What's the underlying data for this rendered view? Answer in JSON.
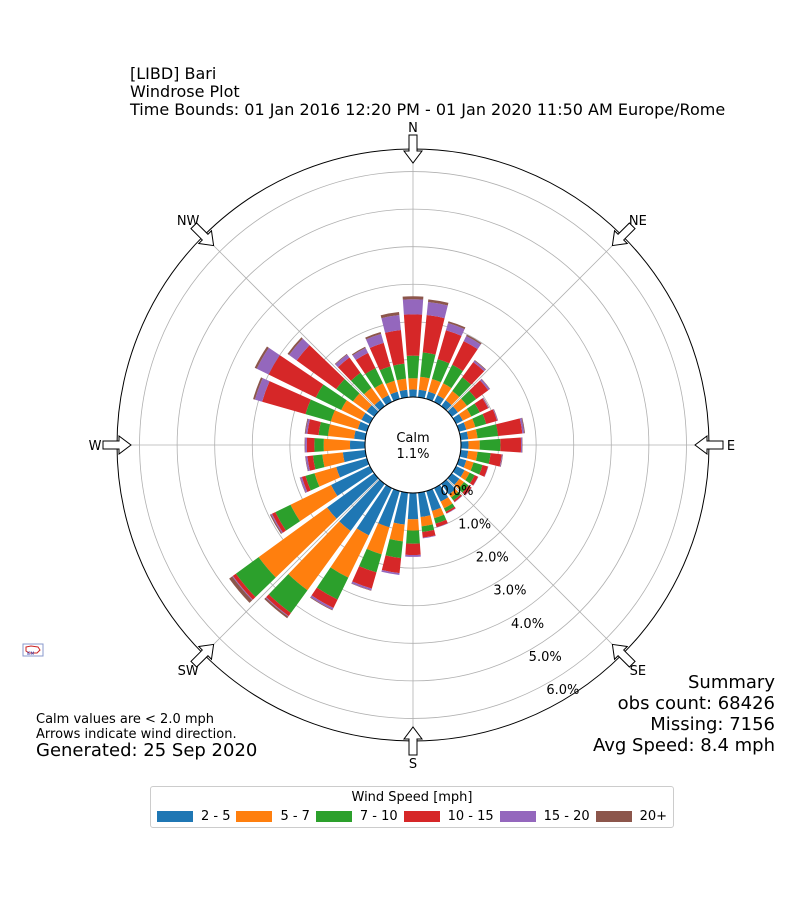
{
  "title": {
    "station": "[LIBD] Bari",
    "plot": "Windrose Plot",
    "time_bounds": "Time Bounds: 01 Jan 2016 12:20 PM - 01 Jan 2020 11:50 AM Europe/Rome"
  },
  "calm": {
    "label": "Calm",
    "value": "1.1%"
  },
  "notes": {
    "calm_note": "Calm values are < 2.0 mph",
    "arrow_note": "Arrows indicate wind direction.",
    "generated": "Generated: 25 Sep 2020"
  },
  "summary": {
    "heading": "Summary",
    "obs_count": "obs count: 68426",
    "missing": "Missing: 7156",
    "avg_speed": "Avg Speed: 8.4 mph"
  },
  "legend": {
    "title": "Wind Speed [mph]",
    "items": [
      {
        "label": "2 - 5",
        "color": "#1f77b4"
      },
      {
        "label": "5 - 7",
        "color": "#ff7f0e"
      },
      {
        "label": "7 - 10",
        "color": "#2ca02c"
      },
      {
        "label": "10 - 15",
        "color": "#d62728"
      },
      {
        "label": "15 - 20",
        "color": "#9467bd"
      },
      {
        "label": "20+",
        "color": "#8c564b"
      }
    ]
  },
  "chart_data": {
    "type": "windrose",
    "directions_deg": [
      0,
      10,
      20,
      30,
      40,
      50,
      60,
      70,
      80,
      90,
      100,
      110,
      120,
      130,
      140,
      150,
      160,
      170,
      180,
      190,
      200,
      210,
      220,
      230,
      240,
      250,
      260,
      270,
      280,
      290,
      300,
      310,
      320,
      330,
      340,
      350
    ],
    "compass_labels": [
      "N",
      "NE",
      "E",
      "SE",
      "S",
      "SW",
      "W",
      "NW"
    ],
    "radial_ticks": [
      "0.0%",
      "1.0%",
      "2.0%",
      "3.0%",
      "4.0%",
      "5.0%",
      "6.0%"
    ],
    "rmax": 6.6,
    "series": [
      {
        "name": "2 - 5",
        "values": [
          0.2,
          0.2,
          0.2,
          0.2,
          0.2,
          0.2,
          0.2,
          0.2,
          0.2,
          0.2,
          0.2,
          0.2,
          0.25,
          0.25,
          0.35,
          0.4,
          0.55,
          0.65,
          0.7,
          0.85,
          1.0,
          1.4,
          1.55,
          1.55,
          1.15,
          0.85,
          0.6,
          0.4,
          0.3,
          0.25,
          0.25,
          0.25,
          0.2,
          0.2,
          0.2,
          0.2
        ]
      },
      {
        "name": "5 - 7",
        "values": [
          0.3,
          0.35,
          0.35,
          0.35,
          0.3,
          0.3,
          0.25,
          0.25,
          0.25,
          0.3,
          0.25,
          0.2,
          0.15,
          0.15,
          0.1,
          0.2,
          0.2,
          0.25,
          0.3,
          0.45,
          0.75,
          1.25,
          1.95,
          2.25,
          1.2,
          0.6,
          0.55,
          0.7,
          0.7,
          0.75,
          0.6,
          0.45,
          0.4,
          0.35,
          0.3,
          0.3
        ]
      },
      {
        "name": "7 - 10",
        "values": [
          0.6,
          0.65,
          0.55,
          0.55,
          0.45,
          0.3,
          0.25,
          0.3,
          0.55,
          0.55,
          0.35,
          0.25,
          0.15,
          0.15,
          0.1,
          0.1,
          0.15,
          0.15,
          0.35,
          0.45,
          0.5,
          0.65,
          0.75,
          0.75,
          0.45,
          0.25,
          0.25,
          0.25,
          0.25,
          0.7,
          0.75,
          0.55,
          0.5,
          0.45,
          0.4,
          0.4
        ]
      },
      {
        "name": "10 - 15",
        "values": [
          1.1,
          1.0,
          0.8,
          0.7,
          0.5,
          0.4,
          0.25,
          0.3,
          0.65,
          0.55,
          0.3,
          0.15,
          0.1,
          0.1,
          0.05,
          0.05,
          0.1,
          0.15,
          0.3,
          0.4,
          0.45,
          0.25,
          0.1,
          0.1,
          0.1,
          0.1,
          0.15,
          0.2,
          0.3,
          1.2,
          1.4,
          1.3,
          0.5,
          0.45,
          0.65,
          0.9
        ]
      },
      {
        "name": "15 - 20",
        "values": [
          0.4,
          0.35,
          0.2,
          0.15,
          0.05,
          0.05,
          0.02,
          0.02,
          0.05,
          0.03,
          0.02,
          0.01,
          0.01,
          0.01,
          0.01,
          0.01,
          0.01,
          0.02,
          0.05,
          0.05,
          0.05,
          0.05,
          0.02,
          0.02,
          0.03,
          0.05,
          0.05,
          0.05,
          0.05,
          0.2,
          0.35,
          0.25,
          0.1,
          0.15,
          0.25,
          0.4
        ]
      },
      {
        "name": "20+",
        "values": [
          0.08,
          0.07,
          0.05,
          0.04,
          0.02,
          0.01,
          0.01,
          0.01,
          0.02,
          0.01,
          0.01,
          0.0,
          0.0,
          0.0,
          0.0,
          0.0,
          0.0,
          0.0,
          0.0,
          0.0,
          0.01,
          0.02,
          0.05,
          0.1,
          0.03,
          0.01,
          0.01,
          0.01,
          0.02,
          0.05,
          0.06,
          0.05,
          0.02,
          0.03,
          0.05,
          0.08
        ]
      }
    ]
  }
}
